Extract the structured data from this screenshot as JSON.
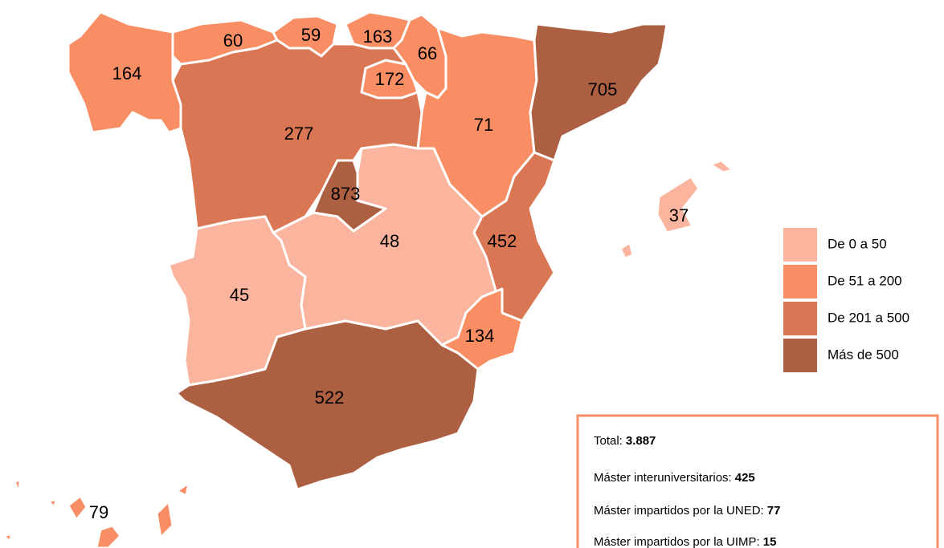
{
  "regions": [
    {
      "value": 164,
      "color": "#f98d63"
    },
    {
      "value": 60,
      "color": "#f98d63"
    },
    {
      "value": 59,
      "color": "#f98d63"
    },
    {
      "value": 163,
      "color": "#f98d63"
    },
    {
      "value": 66,
      "color": "#f98d63"
    },
    {
      "value": 172,
      "color": "#f98d63"
    },
    {
      "value": 71,
      "color": "#f98d63"
    },
    {
      "value": 705,
      "color": "#ad5f42"
    },
    {
      "value": 277,
      "color": "#d97653"
    },
    {
      "value": 873,
      "color": "#ad5f42"
    },
    {
      "value": 48,
      "color": "#fbb59e"
    },
    {
      "value": 45,
      "color": "#fbb59e"
    },
    {
      "value": 452,
      "color": "#d97653"
    },
    {
      "value": 134,
      "color": "#f98d63"
    },
    {
      "value": 522,
      "color": "#ad5f42"
    },
    {
      "value": 37,
      "color": "#fbb59e"
    },
    {
      "value": 79,
      "color": "#f98d63"
    }
  ],
  "legend": [
    {
      "label": "De 0 a 50",
      "color": "#fbb59e"
    },
    {
      "label": "De 51 a 200",
      "color": "#f98d63"
    },
    {
      "label": "De 201 a 500",
      "color": "#d97653"
    },
    {
      "label": "Más de 500",
      "color": "#ad5f42"
    }
  ],
  "info": [
    {
      "label": "Total:",
      "value": "3.887"
    },
    {
      "label": "Máster interuniversitarios:",
      "value": "425"
    },
    {
      "label": "Máster impartidos por la UNED:",
      "value": "77"
    },
    {
      "label": "Máster impartidos por la UIMP:",
      "value": "15"
    }
  ]
}
